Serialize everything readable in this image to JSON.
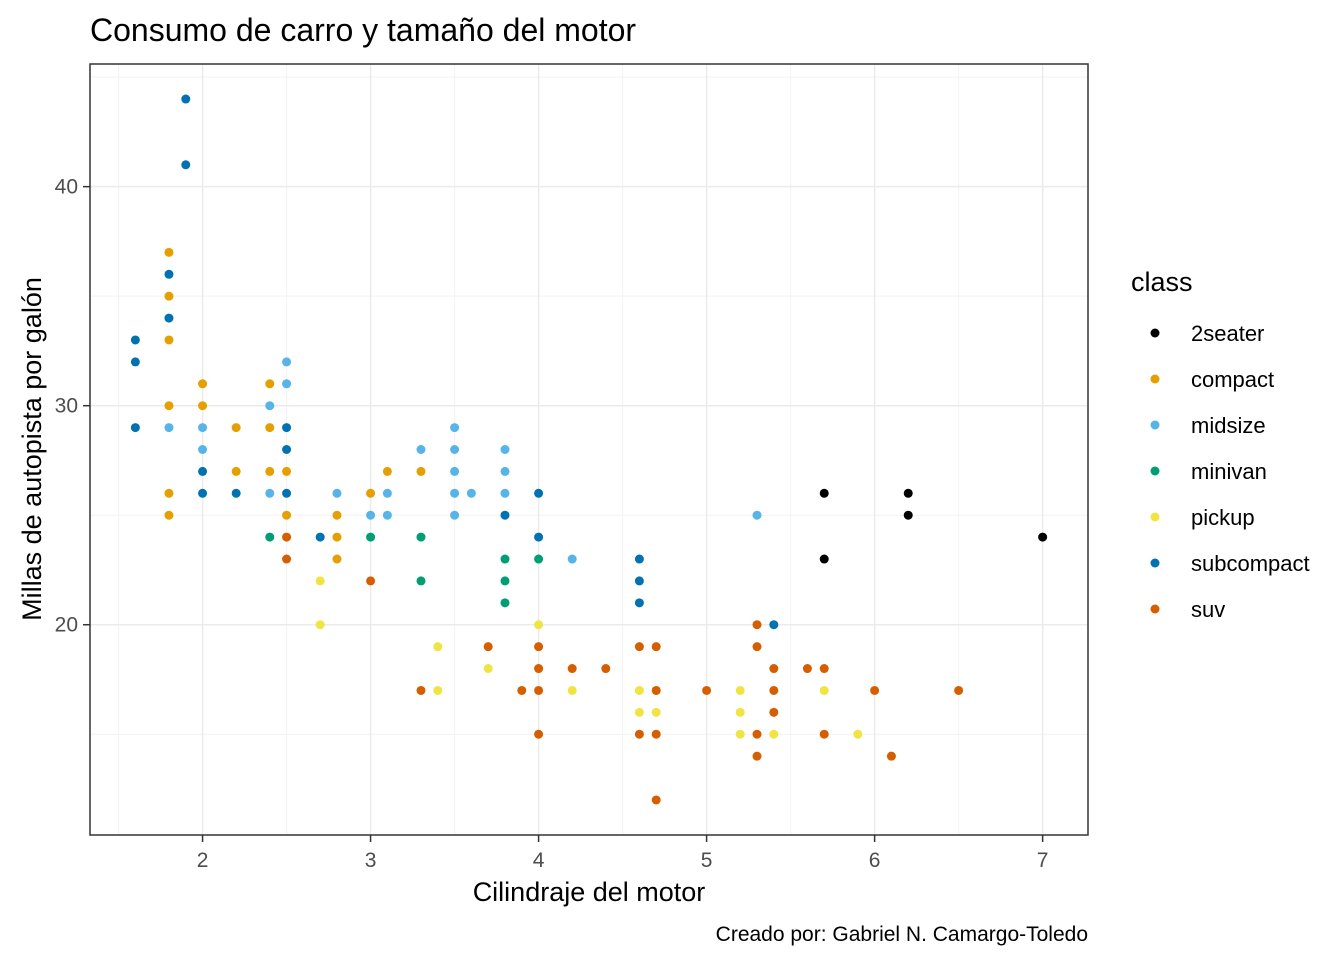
{
  "chart_data": {
    "type": "scatter",
    "title": "Consumo de carro y tamaño del motor",
    "xlabel": "Cilindraje del motor",
    "ylabel": "Millas de autopista por galón",
    "caption": "Creado por: Gabriel N. Camargo-Toledo",
    "xlim": [
      1.33,
      7.27
    ],
    "ylim": [
      10.4,
      45.6
    ],
    "x_ticks": [
      2,
      3,
      4,
      5,
      6,
      7
    ],
    "y_ticks": [
      20,
      30,
      40
    ],
    "grid": true,
    "legend": {
      "title": "class",
      "placement": "right"
    },
    "series": [
      {
        "name": "2seater",
        "color": "#000000",
        "points": [
          [
            5.7,
            26
          ],
          [
            5.7,
            23
          ],
          [
            6.2,
            26
          ],
          [
            6.2,
            25
          ],
          [
            7.0,
            24
          ]
        ]
      },
      {
        "name": "compact",
        "color": "#E69F00",
        "points": [
          [
            1.8,
            37
          ],
          [
            1.8,
            35
          ],
          [
            1.8,
            33
          ],
          [
            1.8,
            30
          ],
          [
            1.8,
            26
          ],
          [
            1.8,
            25
          ],
          [
            2.0,
            31
          ],
          [
            2.0,
            30
          ],
          [
            2.2,
            29
          ],
          [
            2.2,
            27
          ],
          [
            2.4,
            31
          ],
          [
            2.4,
            29
          ],
          [
            2.4,
            27
          ],
          [
            2.5,
            27
          ],
          [
            2.5,
            25
          ],
          [
            2.8,
            25
          ],
          [
            2.8,
            24
          ],
          [
            2.8,
            23
          ],
          [
            3.0,
            26
          ],
          [
            3.1,
            27
          ],
          [
            3.3,
            27
          ]
        ]
      },
      {
        "name": "midsize",
        "color": "#56B4E9",
        "points": [
          [
            1.8,
            29
          ],
          [
            2.0,
            29
          ],
          [
            2.0,
            28
          ],
          [
            2.4,
            30
          ],
          [
            2.4,
            26
          ],
          [
            2.5,
            32
          ],
          [
            2.5,
            31
          ],
          [
            2.8,
            26
          ],
          [
            3.0,
            25
          ],
          [
            3.1,
            26
          ],
          [
            3.1,
            25
          ],
          [
            3.3,
            28
          ],
          [
            3.5,
            29
          ],
          [
            3.5,
            28
          ],
          [
            3.5,
            27
          ],
          [
            3.5,
            26
          ],
          [
            3.5,
            25
          ],
          [
            3.6,
            26
          ],
          [
            3.8,
            28
          ],
          [
            3.8,
            27
          ],
          [
            3.8,
            26
          ],
          [
            4.2,
            23
          ],
          [
            5.3,
            25
          ]
        ]
      },
      {
        "name": "minivan",
        "color": "#009E73",
        "points": [
          [
            2.4,
            24
          ],
          [
            3.0,
            24
          ],
          [
            3.3,
            24
          ],
          [
            3.3,
            22
          ],
          [
            3.8,
            23
          ],
          [
            3.8,
            22
          ],
          [
            3.8,
            21
          ],
          [
            4.0,
            23
          ]
        ]
      },
      {
        "name": "pickup",
        "color": "#F0E442",
        "points": [
          [
            2.7,
            22
          ],
          [
            2.7,
            20
          ],
          [
            3.4,
            19
          ],
          [
            3.4,
            17
          ],
          [
            3.7,
            18
          ],
          [
            4.0,
            20
          ],
          [
            4.0,
            18
          ],
          [
            4.2,
            17
          ],
          [
            4.6,
            17
          ],
          [
            4.6,
            16
          ],
          [
            4.7,
            17
          ],
          [
            4.7,
            16
          ],
          [
            5.2,
            17
          ],
          [
            5.2,
            16
          ],
          [
            5.2,
            15
          ],
          [
            5.4,
            15
          ],
          [
            5.7,
            17
          ],
          [
            5.9,
            15
          ]
        ]
      },
      {
        "name": "subcompact",
        "color": "#0072B2",
        "points": [
          [
            1.6,
            33
          ],
          [
            1.6,
            32
          ],
          [
            1.6,
            29
          ],
          [
            1.8,
            36
          ],
          [
            1.8,
            34
          ],
          [
            1.9,
            44
          ],
          [
            1.9,
            41
          ],
          [
            2.0,
            27
          ],
          [
            2.0,
            26
          ],
          [
            2.2,
            26
          ],
          [
            2.5,
            29
          ],
          [
            2.5,
            28
          ],
          [
            2.5,
            26
          ],
          [
            2.7,
            24
          ],
          [
            3.8,
            25
          ],
          [
            4.0,
            26
          ],
          [
            4.0,
            24
          ],
          [
            4.6,
            23
          ],
          [
            4.6,
            22
          ],
          [
            4.6,
            21
          ],
          [
            5.4,
            20
          ]
        ]
      },
      {
        "name": "suv",
        "color": "#D55E00",
        "points": [
          [
            2.5,
            24
          ],
          [
            2.5,
            23
          ],
          [
            3.0,
            22
          ],
          [
            3.3,
            17
          ],
          [
            3.7,
            19
          ],
          [
            3.9,
            17
          ],
          [
            4.0,
            19
          ],
          [
            4.0,
            18
          ],
          [
            4.0,
            17
          ],
          [
            4.0,
            15
          ],
          [
            4.2,
            18
          ],
          [
            4.4,
            18
          ],
          [
            4.6,
            19
          ],
          [
            4.6,
            15
          ],
          [
            4.7,
            19
          ],
          [
            4.7,
            17
          ],
          [
            4.7,
            15
          ],
          [
            4.7,
            12
          ],
          [
            5.0,
            17
          ],
          [
            5.3,
            20
          ],
          [
            5.3,
            19
          ],
          [
            5.3,
            15
          ],
          [
            5.3,
            14
          ],
          [
            5.4,
            18
          ],
          [
            5.4,
            17
          ],
          [
            5.4,
            16
          ],
          [
            5.6,
            18
          ],
          [
            5.7,
            18
          ],
          [
            5.7,
            15
          ],
          [
            6.0,
            17
          ],
          [
            6.1,
            14
          ],
          [
            6.5,
            17
          ]
        ]
      }
    ]
  }
}
